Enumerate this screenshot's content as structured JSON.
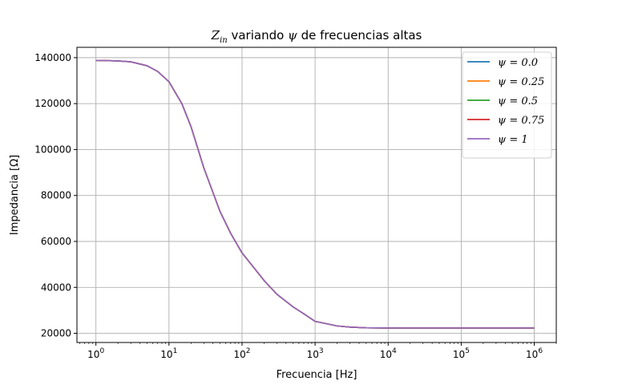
{
  "chart_data": {
    "type": "line",
    "title": "Z_in variando ψ de frecuencias altas",
    "title_parts": {
      "main": "Z",
      "sub": "in",
      "rest_a": " variando ",
      "psi": "ψ",
      "rest_b": " de frecuencias altas"
    },
    "xlabel": "Frecuencia [Hz]",
    "ylabel": "Impedancia [Ω]",
    "xscale": "log",
    "xlim": [
      0.55,
      2000000
    ],
    "ylim": [
      16000,
      144500
    ],
    "grid": true,
    "legend_placement": "top-right",
    "x_ticks": [
      {
        "value": 1,
        "base": "10",
        "exp": "0"
      },
      {
        "value": 10,
        "base": "10",
        "exp": "1"
      },
      {
        "value": 100,
        "base": "10",
        "exp": "2"
      },
      {
        "value": 1000,
        "base": "10",
        "exp": "3"
      },
      {
        "value": 10000,
        "base": "10",
        "exp": "4"
      },
      {
        "value": 100000,
        "base": "10",
        "exp": "5"
      },
      {
        "value": 1000000,
        "base": "10",
        "exp": "6"
      }
    ],
    "y_ticks": [
      {
        "value": 20000,
        "label": "20000"
      },
      {
        "value": 40000,
        "label": "40000"
      },
      {
        "value": 60000,
        "label": "60000"
      },
      {
        "value": 80000,
        "label": "80000"
      },
      {
        "value": 100000,
        "label": "100000"
      },
      {
        "value": 120000,
        "label": "120000"
      },
      {
        "value": 140000,
        "label": "140000"
      }
    ],
    "x": [
      1,
      2,
      3,
      5,
      7,
      10,
      15,
      20,
      30,
      50,
      70,
      100,
      200,
      300,
      500,
      700,
      1000,
      2000,
      3000,
      5000,
      10000,
      100000,
      1000000
    ],
    "series": [
      {
        "name": "ψ = 0.0",
        "color": "#1f77b4",
        "values": [
          138800,
          138600,
          138200,
          136500,
          134000,
          129500,
          120000,
          110000,
          92000,
          73000,
          63500,
          55000,
          43000,
          37000,
          31500,
          28500,
          25200,
          23200,
          22700,
          22400,
          22300,
          22300,
          22300
        ]
      },
      {
        "name": "ψ = 0.25",
        "color": "#ff7f0e",
        "values": [
          138800,
          138600,
          138200,
          136500,
          134000,
          129500,
          120000,
          110000,
          92000,
          73000,
          63500,
          55000,
          43000,
          37000,
          31500,
          28500,
          25200,
          23200,
          22700,
          22400,
          22300,
          22300,
          22300
        ]
      },
      {
        "name": "ψ = 0.5",
        "color": "#2ca02c",
        "values": [
          138800,
          138600,
          138200,
          136500,
          134000,
          129500,
          120000,
          110000,
          92000,
          73000,
          63500,
          55000,
          43000,
          37000,
          31500,
          28500,
          25200,
          23200,
          22700,
          22400,
          22300,
          22300,
          22300
        ]
      },
      {
        "name": "ψ = 0.75",
        "color": "#d62728",
        "values": [
          138800,
          138600,
          138200,
          136500,
          134000,
          129500,
          120000,
          110000,
          92000,
          73000,
          63500,
          55000,
          43000,
          37000,
          31500,
          28500,
          25200,
          23200,
          22700,
          22400,
          22300,
          22300,
          22300
        ]
      },
      {
        "name": "ψ = 1",
        "color": "#9467bd",
        "values": [
          138800,
          138600,
          138200,
          136500,
          134000,
          129500,
          120000,
          110000,
          92000,
          73000,
          63500,
          55000,
          43000,
          37000,
          31500,
          28500,
          25200,
          23200,
          22700,
          22400,
          22300,
          22300,
          22300
        ]
      }
    ]
  }
}
